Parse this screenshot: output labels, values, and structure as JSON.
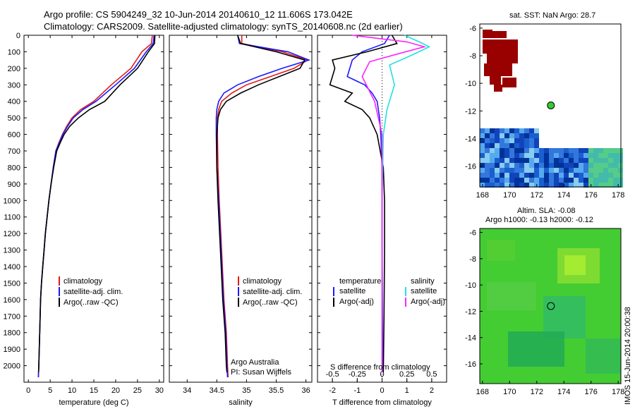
{
  "title": {
    "line1": "Argo profile: CS 5904249_32 10-Jun-2014 20140610_12 11.606S 173.042E",
    "line2": "Climatology: CARS2009. Satellite-adjusted climatology: synTS_20140608.nc (2d earlier)"
  },
  "colors": {
    "clim": "#e01a1a",
    "sat": "#1a1aff",
    "argo": "#000000",
    "sal_sat": "#22e0e0",
    "sal_argo": "#ff22ff",
    "sst_land": "#990000",
    "sla_bg": "#44cc33"
  },
  "chart_data": [
    {
      "type": "line",
      "title": "",
      "xlabel": "temperature (deg C)",
      "ylabel": "",
      "xlim": [
        -1,
        31
      ],
      "ylim": [
        2100,
        0
      ],
      "xticks": [
        0,
        5,
        10,
        15,
        20,
        25,
        30
      ],
      "yticks": [
        0,
        100,
        200,
        300,
        400,
        500,
        600,
        700,
        800,
        900,
        1000,
        1100,
        1200,
        1300,
        1400,
        1500,
        1600,
        1700,
        1800,
        1900,
        2000
      ],
      "legend": {
        "position": "bottom-right",
        "entries": [
          "climatology",
          "satellite-adj. clim.",
          "Argo(..raw -QC)"
        ]
      },
      "series": [
        {
          "name": "climatology",
          "color": "#e01a1a",
          "x": [
            28.4,
            28.2,
            26.0,
            23.5,
            19.0,
            15.0,
            12.0,
            10.0,
            8.8,
            7.8,
            7.0,
            6.3,
            5.7,
            5.2,
            4.7,
            4.3,
            3.9,
            3.6,
            3.3,
            3.0,
            2.8,
            2.6,
            2.4,
            2.3
          ],
          "y": [
            0,
            50,
            100,
            200,
            300,
            400,
            450,
            500,
            550,
            600,
            650,
            700,
            800,
            900,
            1000,
            1100,
            1200,
            1300,
            1400,
            1500,
            1600,
            1800,
            2000,
            2070
          ]
        },
        {
          "name": "satellite-adj. clim.",
          "color": "#1a1aff",
          "x": [
            28.8,
            28.6,
            27.0,
            24.3,
            20.0,
            15.5,
            12.5,
            10.3,
            9.0,
            7.9,
            7.1,
            6.3,
            5.7,
            5.2,
            4.7,
            4.3,
            3.9,
            3.6,
            3.3,
            3.0,
            2.8,
            2.6,
            2.4,
            2.3
          ],
          "y": [
            0,
            50,
            100,
            200,
            300,
            400,
            450,
            500,
            550,
            600,
            650,
            700,
            800,
            900,
            1000,
            1100,
            1200,
            1300,
            1400,
            1500,
            1600,
            1800,
            2000,
            2070
          ]
        },
        {
          "name": "Argo(..raw -QC)",
          "color": "#000000",
          "x": [
            29.0,
            28.9,
            27.5,
            25.0,
            21.0,
            17.5,
            14.0,
            11.5,
            9.5,
            8.2,
            7.3,
            6.5,
            5.8,
            5.2,
            4.7,
            4.3,
            3.9,
            3.6,
            3.3,
            3.0,
            2.8,
            2.6,
            2.4,
            2.35
          ],
          "y": [
            0,
            50,
            100,
            200,
            300,
            400,
            450,
            500,
            550,
            600,
            650,
            700,
            800,
            900,
            1000,
            1100,
            1200,
            1300,
            1400,
            1500,
            1600,
            1800,
            2000,
            2040
          ]
        }
      ]
    },
    {
      "type": "line",
      "xlabel": "salinity",
      "xlim": [
        33.7,
        36.1
      ],
      "ylim": [
        2100,
        0
      ],
      "xticks": [
        34,
        34.5,
        35,
        35.5,
        36
      ],
      "xtick_labels": [
        "34",
        "34.5",
        "35",
        "35.5",
        "36"
      ],
      "legend": {
        "position": "bottom-right",
        "entries": [
          "climatology",
          "satellite-adj. clim.",
          "Argo(..raw -QC)"
        ]
      },
      "annotation": {
        "line1": "Argo Australia",
        "line2": "PI: Susan Wijffels"
      },
      "series": [
        {
          "name": "climatology",
          "color": "#e01a1a",
          "x": [
            34.92,
            34.92,
            35.6,
            36.03,
            35.8,
            35.4,
            35.0,
            34.75,
            34.58,
            34.53,
            34.51,
            34.51,
            34.52,
            34.54,
            34.58,
            34.62,
            34.66,
            34.68,
            34.69
          ],
          "y": [
            0,
            50,
            100,
            150,
            200,
            250,
            300,
            350,
            400,
            450,
            500,
            600,
            800,
            1000,
            1300,
            1600,
            1800,
            2000,
            2070
          ]
        },
        {
          "name": "satellite-adj. clim.",
          "color": "#1a1aff",
          "x": [
            34.85,
            34.88,
            35.7,
            36.05,
            35.6,
            35.2,
            34.85,
            34.62,
            34.53,
            34.5,
            34.49,
            34.49,
            34.5,
            34.53,
            34.57,
            34.61,
            34.65,
            34.67,
            34.68
          ],
          "y": [
            0,
            50,
            100,
            150,
            200,
            250,
            300,
            350,
            400,
            450,
            500,
            600,
            800,
            1000,
            1300,
            1600,
            1800,
            2000,
            2070
          ]
        },
        {
          "name": "Argo(..raw -QC)",
          "color": "#000000",
          "x": [
            34.85,
            34.9,
            35.5,
            35.98,
            35.9,
            35.55,
            35.2,
            34.9,
            34.66,
            34.56,
            34.52,
            34.5,
            34.5,
            34.52,
            34.56,
            34.6,
            34.64,
            34.66,
            34.67
          ],
          "y": [
            0,
            50,
            100,
            150,
            200,
            250,
            300,
            350,
            400,
            450,
            500,
            600,
            800,
            1000,
            1300,
            1600,
            1800,
            2000,
            2040
          ]
        }
      ]
    },
    {
      "type": "line",
      "xlabel": "T difference from climatology",
      "top_xlabel": "S difference from climatology",
      "xlim": [
        -2.6,
        2.6
      ],
      "ylim": [
        2100,
        0
      ],
      "xticks": [
        -2,
        -1,
        0,
        1,
        2
      ],
      "xtick_labels": [
        "-2",
        "-1",
        "0",
        "1",
        "2"
      ],
      "top_ticks": [
        -0.5,
        -0.25,
        0,
        0.25,
        0.5
      ],
      "top_tick_labels": [
        "-0.5",
        "-0.25",
        "0",
        "0.25",
        "0.5"
      ],
      "legend": {
        "position": "bottom",
        "col1_title": "temperature",
        "col2_title": "salinity",
        "col1": [
          "satellite",
          "Argo(-adj)"
        ],
        "col2": [
          "satellite",
          "Argo(-adj)"
        ]
      },
      "series": [
        {
          "name": "temperature satellite",
          "color": "#1a1aff",
          "x": [
            0.3,
            0.1,
            -0.8,
            -1.2,
            -1.4,
            -0.7,
            -0.4,
            -0.2,
            -0.1,
            -0.05,
            0.0,
            0.0,
            0.02,
            0.02
          ],
          "y": [
            0,
            50,
            100,
            150,
            250,
            300,
            350,
            400,
            500,
            600,
            800,
            1200,
            1800,
            2040
          ]
        },
        {
          "name": "temperature Argo(-adj)",
          "color": "#000000",
          "x": [
            0.4,
            0.6,
            -0.6,
            -2.0,
            -1.9,
            -2.1,
            -1.2,
            -1.5,
            -0.8,
            -0.5,
            -0.2,
            0.05,
            0.1,
            0.1,
            0.08,
            0.05
          ],
          "y": [
            0,
            50,
            100,
            150,
            200,
            300,
            350,
            400,
            450,
            500,
            600,
            800,
            1000,
            1300,
            1700,
            2040
          ]
        },
        {
          "name": "salinity satellite",
          "color": "#22e0e0",
          "x": [
            0.9,
            1.5,
            1.9,
            1.2,
            0.3,
            0.5,
            0.2,
            0.05,
            0.0,
            0.0
          ],
          "y": [
            0,
            40,
            70,
            120,
            180,
            300,
            450,
            600,
            1000,
            2040
          ]
        },
        {
          "name": "salinity Argo(-adj)",
          "color": "#ff22ff",
          "x": [
            -1.2,
            1.0,
            1.7,
            0.7,
            -0.5,
            -0.8,
            -0.3,
            0.0,
            0.0
          ],
          "y": [
            0,
            40,
            70,
            110,
            160,
            250,
            400,
            600,
            2040
          ]
        }
      ]
    },
    {
      "type": "heatmap",
      "title": "sat. SST: NaN Argo: 28.7",
      "xticks": [
        168,
        170,
        172,
        174,
        176,
        178
      ],
      "yticks": [
        -6,
        -8,
        -10,
        -12,
        -14,
        -16
      ],
      "xlim": [
        167.8,
        178.2
      ],
      "ylim": [
        -17.5,
        -5.7
      ],
      "marker": {
        "lon": 173.04,
        "lat": -11.6
      }
    },
    {
      "type": "heatmap",
      "title_line1": "Altim. SLA: -0.08",
      "title_line2": "Argo h1000: -0.13 h2000: -0.12",
      "xticks": [
        168,
        170,
        172,
        174,
        176,
        178
      ],
      "yticks": [
        -6,
        -8,
        -10,
        -12,
        -14,
        -16
      ],
      "xlim": [
        167.8,
        178.2
      ],
      "ylim": [
        -17.5,
        -5.7
      ],
      "marker": {
        "lon": 173.04,
        "lat": -11.6
      }
    }
  ],
  "footer_stamp": "IMOS 15-Jun-2014 20:00:38"
}
